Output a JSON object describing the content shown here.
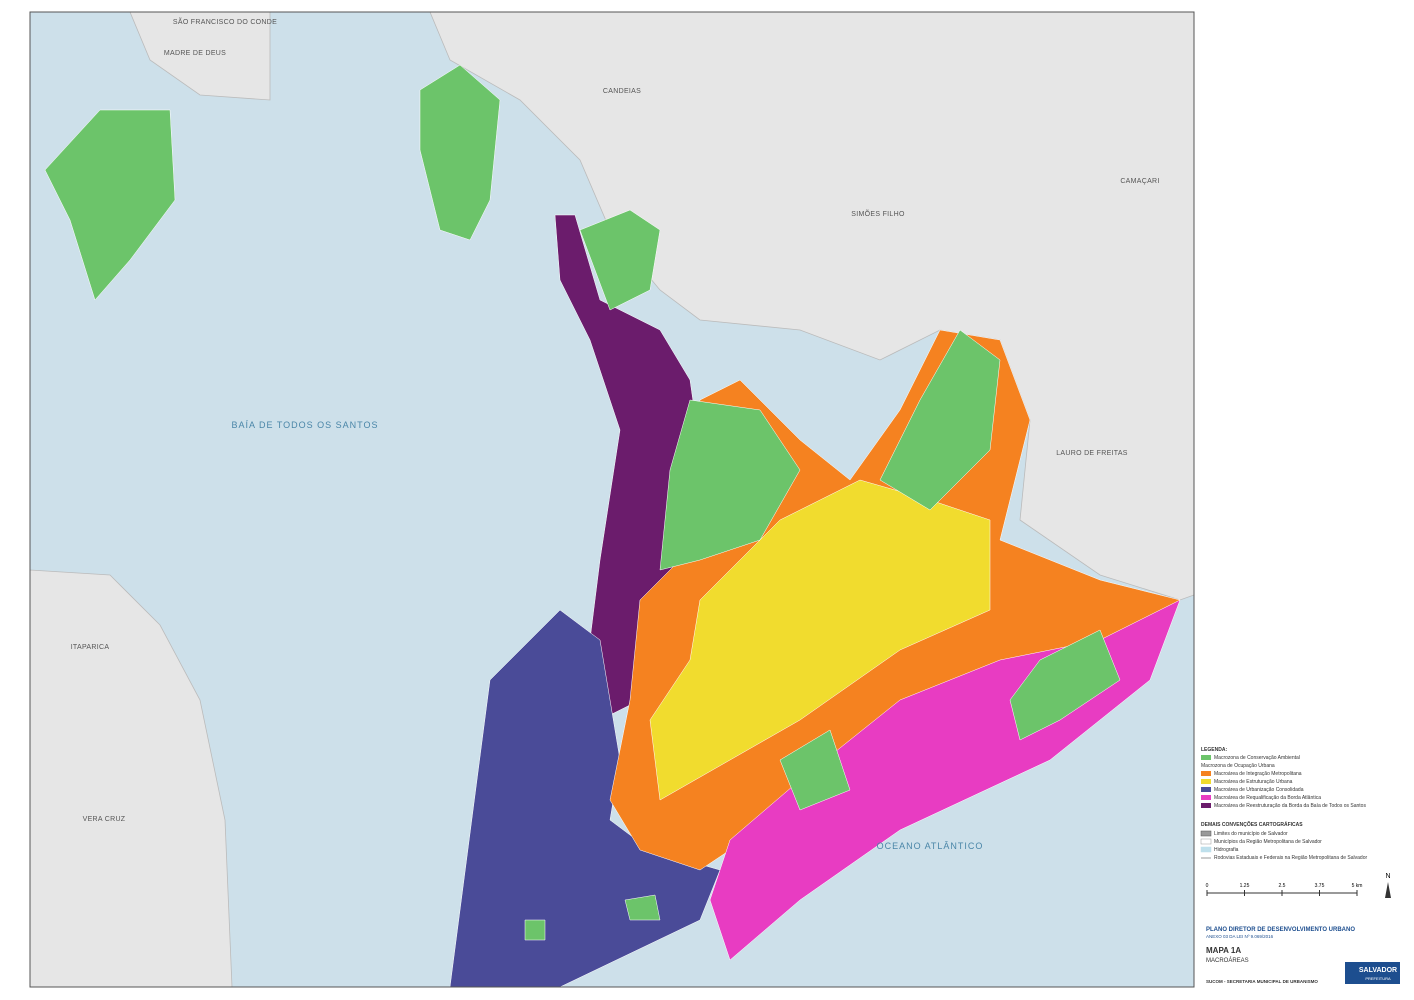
{
  "map": {
    "labels": {
      "sao_francisco": "SÃO FRANCISCO DO CONDE",
      "madre_de_deus": "MADRE DE DEUS",
      "candeias": "CANDEIAS",
      "simoes_filho": "SIMÕES FILHO",
      "camacari": "CAMAÇARI",
      "baia": "BAÍA DE TODOS OS SANTOS",
      "lauro_de_freitas": "LAURO DE FREITAS",
      "itaparica": "ITAPARICA",
      "vera_cruz": "VERA CRUZ",
      "oceano": "OCEANO ATLÂNTICO"
    }
  },
  "legend": {
    "title": "LEGENDA:",
    "conservation": {
      "label": "Macrozona de Conservação Ambiental",
      "color": "#6cc46a"
    },
    "occupation_title": "Macrozona de Ocupação Urbana",
    "areas": [
      {
        "label": "Macroárea de Integração Metropolitana",
        "color": "#f58220"
      },
      {
        "label": "Macroárea de Estruturação Urbana",
        "color": "#f1dc2e"
      },
      {
        "label": "Macroárea de Urbanização Consolidada",
        "color": "#4a4b98"
      },
      {
        "label": "Macroárea de Requalificação da Borda Atlântica",
        "color": "#e83cc2"
      },
      {
        "label": "Macroárea de Reestruturação da Borda da Baía de Todos os Santos",
        "color": "#6b1c6c"
      }
    ]
  },
  "conventions": {
    "title": "DEMAIS CONVENÇÕES CARTOGRÁFICAS",
    "items": [
      "Limites do município de Salvador",
      "Municípios da Região Metropolitana de Salvador",
      "Hidrografia",
      "Rodovias Estaduais e Federais na Região Metropolitana de Salvador"
    ]
  },
  "scale": {
    "ticks": [
      0,
      1.25,
      2.5,
      3.75,
      {
        "value": 5,
        "label": "5 km"
      }
    ],
    "north": "N"
  },
  "title_block": {
    "plan": "PLANO DIRETOR DE DESENVOLVIMENTO URBANO",
    "annex": "ANEXO 03 DA LEI Nº 9.069/2016",
    "map": "MAPA 1A",
    "subtitle": "MACROÁREAS",
    "agency": "SUCOM - SECRETARIA MUNICIPAL DE URBANISMO",
    "logo": "SALVADOR",
    "logo_sub": "PREFEITURA"
  }
}
